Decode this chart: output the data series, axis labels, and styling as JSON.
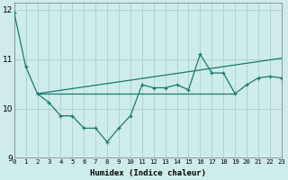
{
  "xlabel": "Humidex (Indice chaleur)",
  "bg_color": "#ceecea",
  "line_color": "#1a7a6e",
  "grid_color": "#aed4d0",
  "xlim": [
    0,
    23
  ],
  "ylim": [
    9,
    12.15
  ],
  "yticks": [
    9,
    10,
    11,
    12
  ],
  "xticks": [
    0,
    1,
    2,
    3,
    4,
    5,
    6,
    7,
    8,
    9,
    10,
    11,
    12,
    13,
    14,
    15,
    16,
    17,
    18,
    19,
    20,
    21,
    22,
    23
  ],
  "line1_x": [
    0,
    1,
    2,
    3,
    4,
    5,
    6,
    7,
    8,
    9,
    10,
    11,
    12,
    13,
    14,
    15,
    16,
    17,
    18,
    19,
    20,
    21,
    22,
    23
  ],
  "line1_y": [
    11.95,
    10.85,
    10.3,
    10.12,
    9.85,
    9.85,
    9.6,
    9.6,
    9.32,
    9.6,
    9.85,
    10.48,
    10.42,
    10.42,
    10.48,
    10.38,
    11.1,
    10.72,
    10.72,
    10.3,
    10.48,
    10.62,
    10.65,
    10.62
  ],
  "line2_x": [
    2,
    19
  ],
  "line2_y": [
    10.3,
    10.3
  ],
  "line3_x": [
    2,
    23
  ],
  "line3_y": [
    10.3,
    11.02
  ]
}
